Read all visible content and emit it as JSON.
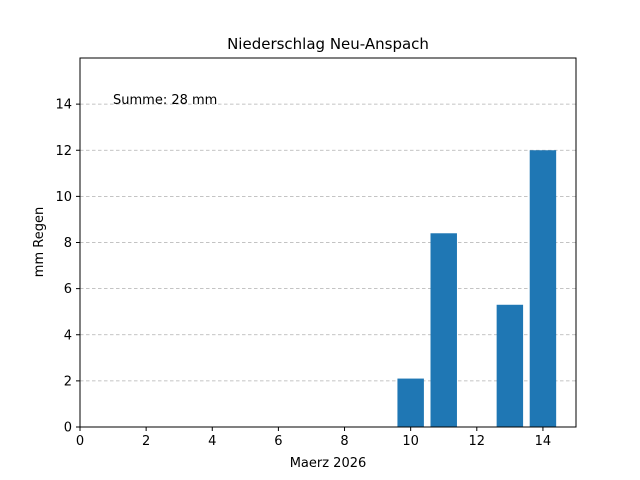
{
  "chart_data": {
    "type": "bar",
    "title": "Niederschlag Neu-Anspach",
    "xlabel": "Maerz 2026",
    "ylabel": "mm Regen",
    "annotation": "Summe: 28 mm",
    "x": [
      10,
      11,
      13,
      14
    ],
    "values": [
      2.1,
      8.4,
      5.3,
      12.0
    ],
    "xlim": [
      0,
      15
    ],
    "ylim": [
      0,
      16
    ],
    "xticks": [
      0,
      2,
      4,
      6,
      8,
      10,
      12,
      14
    ],
    "yticks": [
      0,
      2,
      4,
      6,
      8,
      10,
      12,
      14
    ],
    "grid": "y-dashed",
    "bar_color": "#1f77b4",
    "annotation_color": "#0000cc",
    "grid_color": "#b0b0b0"
  }
}
